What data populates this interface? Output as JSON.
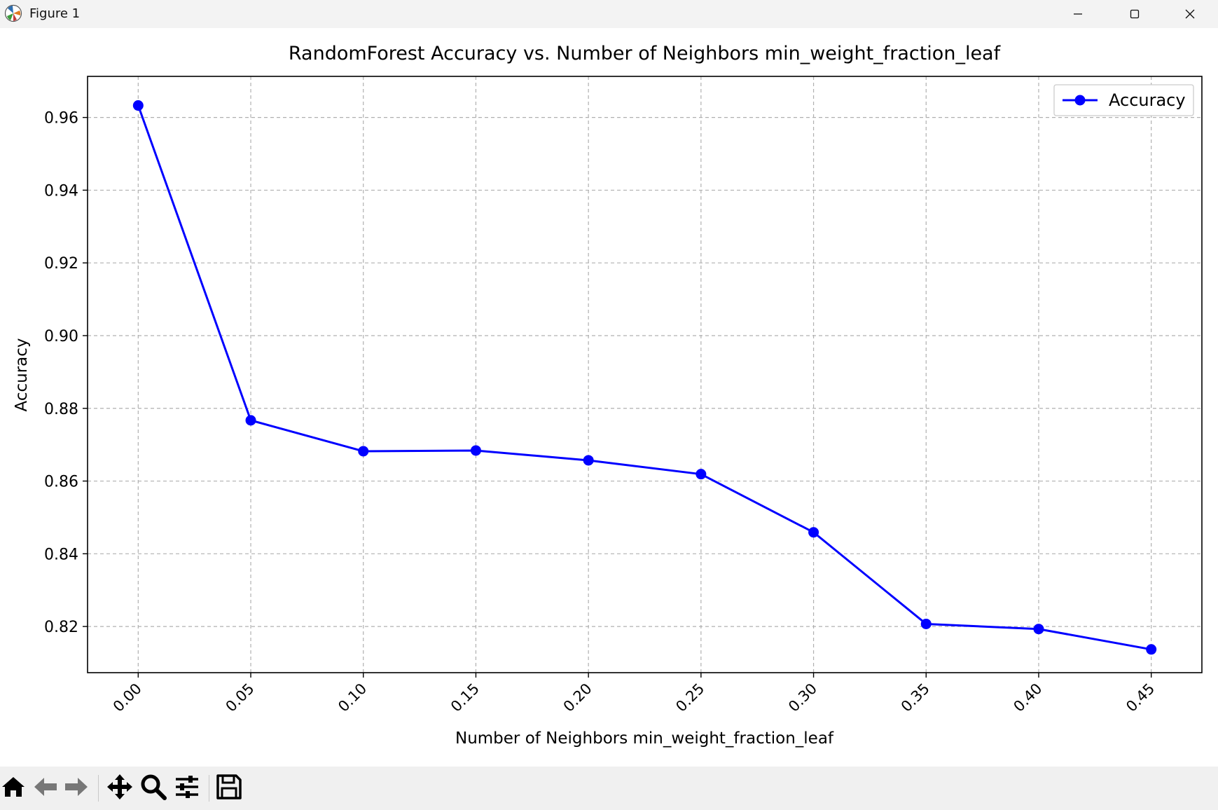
{
  "window": {
    "title": "Figure 1"
  },
  "titlebar_icons": [
    "matplotlib-logo-icon",
    "minimize-icon",
    "maximize-icon",
    "close-icon"
  ],
  "toolbar": {
    "buttons": [
      "home-icon",
      "back-arrow-icon",
      "forward-arrow-icon",
      "pan-move-icon",
      "zoom-magnifier-icon",
      "configure-subplots-icon",
      "save-floppy-icon"
    ]
  },
  "colors": {
    "series": "#0000ff",
    "grid": "#b0b0b0",
    "toolbar_bg": "#f0f0f0",
    "titlebar_bg": "#f3f3f3"
  },
  "chart_data": {
    "type": "line",
    "title": "RandomForest Accuracy vs. Number of Neighbors min_weight_fraction_leaf",
    "xlabel": "Number of Neighbors min_weight_fraction_leaf",
    "ylabel": "Accuracy",
    "x": [
      0.0,
      0.05,
      0.1,
      0.15,
      0.2,
      0.25,
      0.3,
      0.35,
      0.4,
      0.45
    ],
    "x_tick_labels": [
      "0.00",
      "0.05",
      "0.10",
      "0.15",
      "0.20",
      "0.25",
      "0.30",
      "0.35",
      "0.40",
      "0.45"
    ],
    "y_ticks": [
      0.82,
      0.84,
      0.86,
      0.88,
      0.9,
      0.92,
      0.94,
      0.96
    ],
    "y_tick_labels": [
      "0.82",
      "0.84",
      "0.86",
      "0.88",
      "0.90",
      "0.92",
      "0.94",
      "0.96"
    ],
    "xlim": [
      -0.0225,
      0.4725
    ],
    "ylim": [
      0.8073,
      0.9713
    ],
    "series": [
      {
        "name": "Accuracy",
        "color": "#0000ff",
        "marker": "circle",
        "values": [
          0.9633,
          0.8767,
          0.8682,
          0.8684,
          0.8657,
          0.8619,
          0.8459,
          0.8207,
          0.8193,
          0.8137
        ]
      }
    ],
    "grid": true,
    "grid_style": "dashed",
    "legend_position": "top-right"
  }
}
